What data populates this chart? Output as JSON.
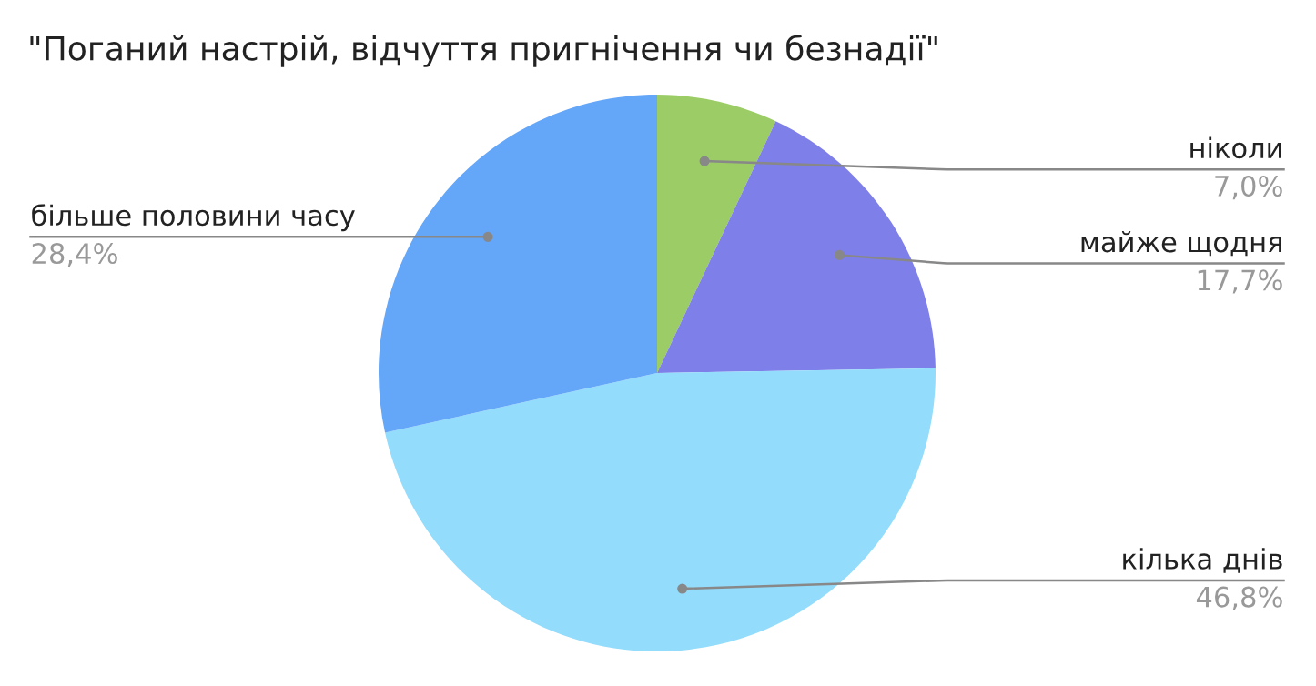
{
  "chart_data": {
    "type": "pie",
    "title": "\"Поганий настрій, відчуття пригнічення чи безнадії\"",
    "categories": [
      "ніколи",
      "майже щодня",
      "кілька днів",
      "більше половини часу"
    ],
    "values": [
      7.0,
      17.7,
      46.8,
      28.4
    ],
    "value_labels": [
      "7,0%",
      "17,7%",
      "46,8%",
      "28,4%"
    ],
    "colors": [
      "#9ccc65",
      "#7e7fe8",
      "#93dcfc",
      "#64a6f8"
    ],
    "legend": false
  }
}
